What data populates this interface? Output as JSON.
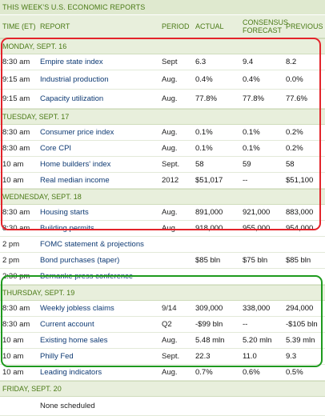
{
  "title": "THIS WEEK'S U.S. ECONOMIC REPORTS",
  "headers": {
    "time": "TIME (ET)",
    "report": "REPORT",
    "period": "PERIOD",
    "actual": "ACTUAL",
    "consensus_line1": "CONSENSUS",
    "consensus_line2": "FORECAST",
    "previous": "PREVIOUS"
  },
  "sections": {
    "monday": "MONDAY, SEPT. 16",
    "tuesday": "TUESDAY, SEPT. 17",
    "wednesday": "WEDNESDAY, SEPT. 18",
    "thursday": "THURSDAY, SEPT. 19",
    "friday": "FRIDAY, SEPT. 20"
  },
  "rows": {
    "monday": [
      {
        "time": "8:30 am",
        "report": "Empire state index",
        "period": "Sept",
        "actual": "6.3",
        "consensus": "9.4",
        "previous": "8.2"
      },
      {
        "time": "9:15 am",
        "report": "Industrial production",
        "period": "Aug.",
        "actual": "0.4%",
        "consensus": "0.4%",
        "previous": "0.0%"
      },
      {
        "time": "9:15 am",
        "report": "Capacity utilization",
        "period": "Aug.",
        "actual": "77.8%",
        "consensus": "77.8%",
        "previous": "77.6%"
      }
    ],
    "tuesday": [
      {
        "time": "8:30 am",
        "report": "Consumer price index",
        "period": "Aug.",
        "actual": "0.1%",
        "consensus": "0.1%",
        "previous": "0.2%"
      },
      {
        "time": "8:30 am",
        "report": "Core CPI",
        "period": "Aug.",
        "actual": "0.1%",
        "consensus": "0.1%",
        "previous": "0.2%"
      },
      {
        "time": "10 am",
        "report": "Home builders' index",
        "period": "Sept.",
        "actual": "58",
        "consensus": "59",
        "previous": "58"
      },
      {
        "time": "10 am",
        "report": "Real median income",
        "period": "2012",
        "actual": "$51,017",
        "consensus": "--",
        "previous": "$51,100"
      }
    ],
    "wednesday": [
      {
        "time": "8:30 am",
        "report": "Housing starts",
        "period": "Aug.",
        "actual": "891,000",
        "consensus": "921,000",
        "previous": "883,000"
      },
      {
        "time": "8:30 am",
        "report": "Building permits",
        "period": "Aug.",
        "actual": "918,000",
        "consensus": "955,000",
        "previous": "954,000"
      },
      {
        "time": "2 pm",
        "report": "FOMC statement & projections",
        "period": "",
        "actual": "",
        "consensus": "",
        "previous": ""
      },
      {
        "time": "2 pm",
        "report": "Bond purchases (taper)",
        "period": "",
        "actual": "$85 bln",
        "consensus": "$75 bln",
        "previous": "$85 bln"
      },
      {
        "time": "2:30 pm",
        "report": "Bernanke press conference",
        "period": "",
        "actual": "",
        "consensus": "",
        "previous": ""
      }
    ],
    "thursday": [
      {
        "time": "8:30 am",
        "report": "Weekly jobless claims",
        "period": "9/14",
        "actual": "309,000",
        "consensus": "338,000",
        "previous": "294,000"
      },
      {
        "time": "8:30 am",
        "report": "Current account",
        "period": "Q2",
        "actual": "-$99 bln",
        "consensus": "--",
        "previous": "-$105 bln"
      },
      {
        "time": "10 am",
        "report": "Existing home sales",
        "period": "Aug.",
        "actual": "5.48 mln",
        "consensus": "5.20 mln",
        "previous": "5.39 mln"
      },
      {
        "time": "10 am",
        "report": "Philly Fed",
        "period": "Sept.",
        "actual": "22.3",
        "consensus": "11.0",
        "previous": "9.3"
      },
      {
        "time": "10 am",
        "report": "Leading indicators",
        "period": "Aug.",
        "actual": "0.7%",
        "consensus": "0.6%",
        "previous": "0.5%"
      }
    ],
    "friday": [
      {
        "time": "",
        "report": "None scheduled",
        "period": "",
        "actual": "",
        "consensus": "",
        "previous": ""
      }
    ]
  },
  "colors": {
    "header_bg": "#e8efdc",
    "header_text": "#4a7a16",
    "report_text": "#0e3a73",
    "highlight_red": "#e3232a",
    "highlight_green": "#1e9a1e"
  }
}
